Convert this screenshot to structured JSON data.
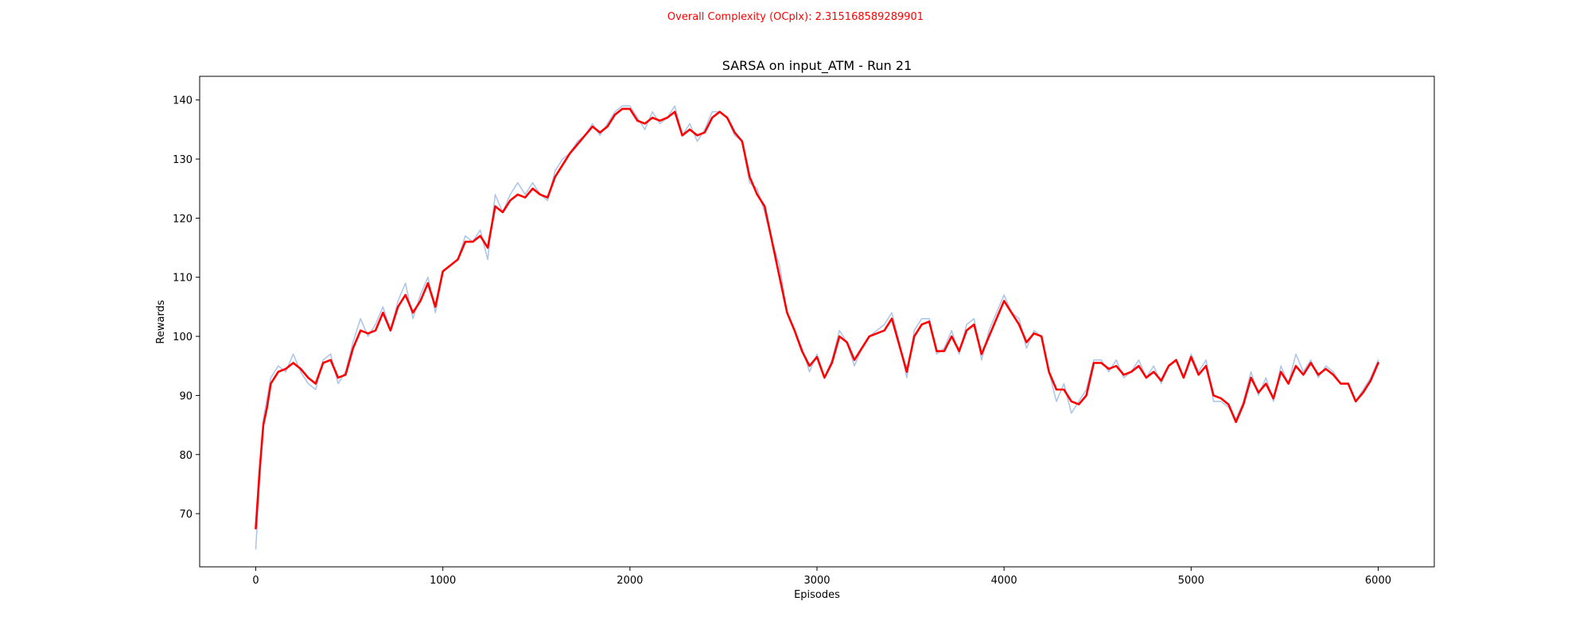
{
  "figure": {
    "suptitle": "Overall Complexity (OCplx): 2.315168589289901",
    "suptitle_color": "#ff0000"
  },
  "chart_data": {
    "type": "line",
    "title": "SARSA on input_ATM - Run 21",
    "xlabel": "Episodes",
    "ylabel": "Rewards",
    "xlim": [
      -300,
      6300
    ],
    "ylim": [
      61,
      144
    ],
    "xticks": [
      0,
      1000,
      2000,
      3000,
      4000,
      5000,
      6000
    ],
    "yticks": [
      70,
      80,
      90,
      100,
      110,
      120,
      130,
      140
    ],
    "grid": false,
    "legend": "none",
    "series": [
      {
        "style": "raw",
        "color": "#aec7e8",
        "x": [
          0,
          40,
          80,
          120,
          160,
          200,
          240,
          280,
          320,
          360,
          400,
          440,
          480,
          520,
          560,
          600,
          640,
          680,
          720,
          760,
          800,
          840,
          880,
          920,
          960,
          1000,
          1040,
          1080,
          1120,
          1160,
          1200,
          1240,
          1280,
          1320,
          1360,
          1400,
          1440,
          1480,
          1520,
          1560,
          1600,
          1640,
          1680,
          1720,
          1760,
          1800,
          1840,
          1880,
          1920,
          1960,
          2000,
          2040,
          2080,
          2120,
          2160,
          2200,
          2240,
          2280,
          2320,
          2360,
          2400,
          2440,
          2480,
          2520,
          2560,
          2600,
          2640,
          2680,
          2720,
          2760,
          2800,
          2840,
          2880,
          2920,
          2960,
          3000,
          3040,
          3080,
          3120,
          3160,
          3200,
          3240,
          3280,
          3320,
          3360,
          3400,
          3440,
          3480,
          3520,
          3560,
          3600,
          3640,
          3680,
          3720,
          3760,
          3800,
          3840,
          3880,
          3920,
          3960,
          4000,
          4040,
          4080,
          4120,
          4160,
          4200,
          4240,
          4280,
          4320,
          4360,
          4400,
          4440,
          4480,
          4520,
          4560,
          4600,
          4640,
          4680,
          4720,
          4760,
          4800,
          4840,
          4880,
          4920,
          4960,
          5000,
          5040,
          5080,
          5120,
          5160,
          5200,
          5240,
          5280,
          5320,
          5360,
          5400,
          5440,
          5480,
          5520,
          5560,
          5600,
          5640,
          5680,
          5720,
          5760,
          5800,
          5840,
          5880,
          5920,
          5960,
          6000
        ],
        "y": [
          64,
          86,
          93,
          95,
          94,
          97,
          94,
          92,
          91,
          96,
          97,
          92,
          94,
          99,
          103,
          100,
          102,
          105,
          101,
          106,
          109,
          103,
          107,
          110,
          104,
          111,
          112,
          113,
          117,
          116,
          118,
          113,
          124,
          121,
          124,
          126,
          124,
          126,
          124,
          123,
          128,
          130,
          131,
          133,
          134,
          136,
          134,
          136,
          138,
          139,
          139,
          137,
          135,
          138,
          136,
          137,
          139,
          134,
          136,
          133,
          135,
          138,
          138,
          137,
          134,
          133,
          126,
          125,
          121,
          116,
          112,
          104,
          101,
          98,
          94,
          97,
          93,
          96,
          101,
          99,
          95,
          98,
          100,
          101,
          102,
          104,
          99,
          93,
          101,
          103,
          103,
          97,
          98,
          101,
          97,
          102,
          103,
          96,
          101,
          104,
          107,
          104,
          103,
          98,
          101,
          100,
          94,
          89,
          92,
          87,
          89,
          91,
          96,
          96,
          94,
          96,
          93,
          94,
          96,
          93,
          95,
          92,
          95,
          96,
          93,
          97,
          94,
          96,
          89,
          89,
          88,
          86,
          89,
          94,
          90,
          93,
          89,
          95,
          92,
          97,
          94,
          96,
          93,
          95,
          94,
          92,
          92,
          89,
          91,
          93,
          96
        ]
      },
      {
        "style": "smoothed",
        "color": "#ff0000",
        "x": [
          0,
          20,
          40,
          60,
          80,
          120,
          160,
          200,
          240,
          280,
          320,
          360,
          400,
          440,
          480,
          520,
          560,
          600,
          640,
          680,
          720,
          760,
          800,
          840,
          880,
          920,
          960,
          1000,
          1040,
          1080,
          1120,
          1160,
          1200,
          1240,
          1280,
          1320,
          1360,
          1400,
          1440,
          1480,
          1520,
          1560,
          1600,
          1640,
          1680,
          1720,
          1760,
          1800,
          1840,
          1880,
          1920,
          1960,
          2000,
          2040,
          2080,
          2120,
          2160,
          2200,
          2240,
          2280,
          2320,
          2360,
          2400,
          2440,
          2480,
          2520,
          2560,
          2600,
          2640,
          2680,
          2720,
          2760,
          2800,
          2840,
          2880,
          2920,
          2960,
          3000,
          3040,
          3080,
          3120,
          3160,
          3200,
          3240,
          3280,
          3320,
          3360,
          3400,
          3440,
          3480,
          3520,
          3560,
          3600,
          3640,
          3680,
          3720,
          3760,
          3800,
          3840,
          3880,
          3920,
          3960,
          4000,
          4040,
          4080,
          4120,
          4160,
          4200,
          4240,
          4280,
          4320,
          4360,
          4400,
          4440,
          4480,
          4520,
          4560,
          4600,
          4640,
          4680,
          4720,
          4760,
          4800,
          4840,
          4880,
          4920,
          4960,
          5000,
          5040,
          5080,
          5120,
          5160,
          5200,
          5240,
          5280,
          5320,
          5360,
          5400,
          5440,
          5480,
          5520,
          5560,
          5600,
          5640,
          5680,
          5720,
          5760,
          5800,
          5840,
          5880,
          5920,
          5960,
          6000
        ],
        "y": [
          67.5,
          77,
          85,
          88,
          92,
          94,
          94.5,
          95.5,
          94.5,
          93,
          92,
          95.5,
          96,
          93,
          93.5,
          98,
          101,
          100.5,
          101,
          104,
          101,
          105,
          107,
          104,
          106,
          109,
          105,
          111,
          112,
          113,
          116,
          116,
          117,
          115,
          122,
          121,
          123,
          124,
          123.5,
          125,
          124,
          123.5,
          127,
          129,
          131,
          132.5,
          134,
          135.5,
          134.5,
          135.5,
          137.5,
          138.5,
          138.5,
          136.5,
          136,
          137,
          136.5,
          137,
          138,
          134,
          135,
          134,
          134.5,
          137,
          138,
          137,
          134.5,
          133,
          127,
          124,
          122,
          116,
          110,
          104,
          101,
          97.5,
          95,
          96.5,
          93,
          95.5,
          100,
          99,
          96,
          98,
          100,
          100.5,
          101,
          103,
          98.5,
          94,
          100,
          102,
          102.5,
          97.5,
          97.5,
          100,
          97.5,
          101,
          102,
          97,
          100,
          103,
          106,
          104,
          102,
          99,
          100.5,
          100,
          94,
          91,
          91,
          89,
          88.5,
          90,
          95.5,
          95.5,
          94.5,
          95,
          93.5,
          94,
          95,
          93,
          94,
          92.5,
          95,
          96,
          93,
          96.5,
          93.5,
          95,
          90,
          89.5,
          88.5,
          85.5,
          88.5,
          93,
          90.5,
          92,
          89.5,
          94,
          92,
          95,
          93.5,
          95.5,
          93.5,
          94.5,
          93.5,
          92,
          92,
          89,
          90.5,
          92.5,
          95.5
        ]
      }
    ]
  }
}
